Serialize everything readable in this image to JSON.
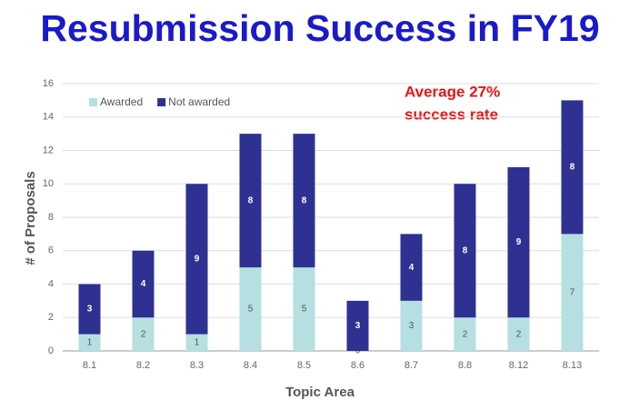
{
  "chart_data": {
    "type": "stacked_bar",
    "title": "Resubmission Success in FY19",
    "annotation": [
      "Average 27%",
      "success rate"
    ],
    "xlabel": "Topic Area",
    "ylabel": "# of Proposals",
    "categories": [
      "8.1",
      "8.2",
      "8.3",
      "8.4",
      "8.5",
      "8.6",
      "8.7",
      "8.8",
      "8.12",
      "8.13"
    ],
    "series": [
      {
        "name": "Awarded",
        "color": "#b5dfe1",
        "values": [
          1,
          2,
          1,
          5,
          5,
          0,
          3,
          2,
          2,
          7
        ]
      },
      {
        "name": "Not awarded",
        "color": "#2e3192",
        "values": [
          3,
          4,
          9,
          8,
          8,
          3,
          4,
          8,
          9,
          8
        ]
      }
    ],
    "ylim": [
      0,
      16
    ],
    "yticks": [
      0,
      2,
      4,
      6,
      8,
      10,
      12,
      14,
      16
    ],
    "grid": true,
    "legend": "top-left"
  }
}
